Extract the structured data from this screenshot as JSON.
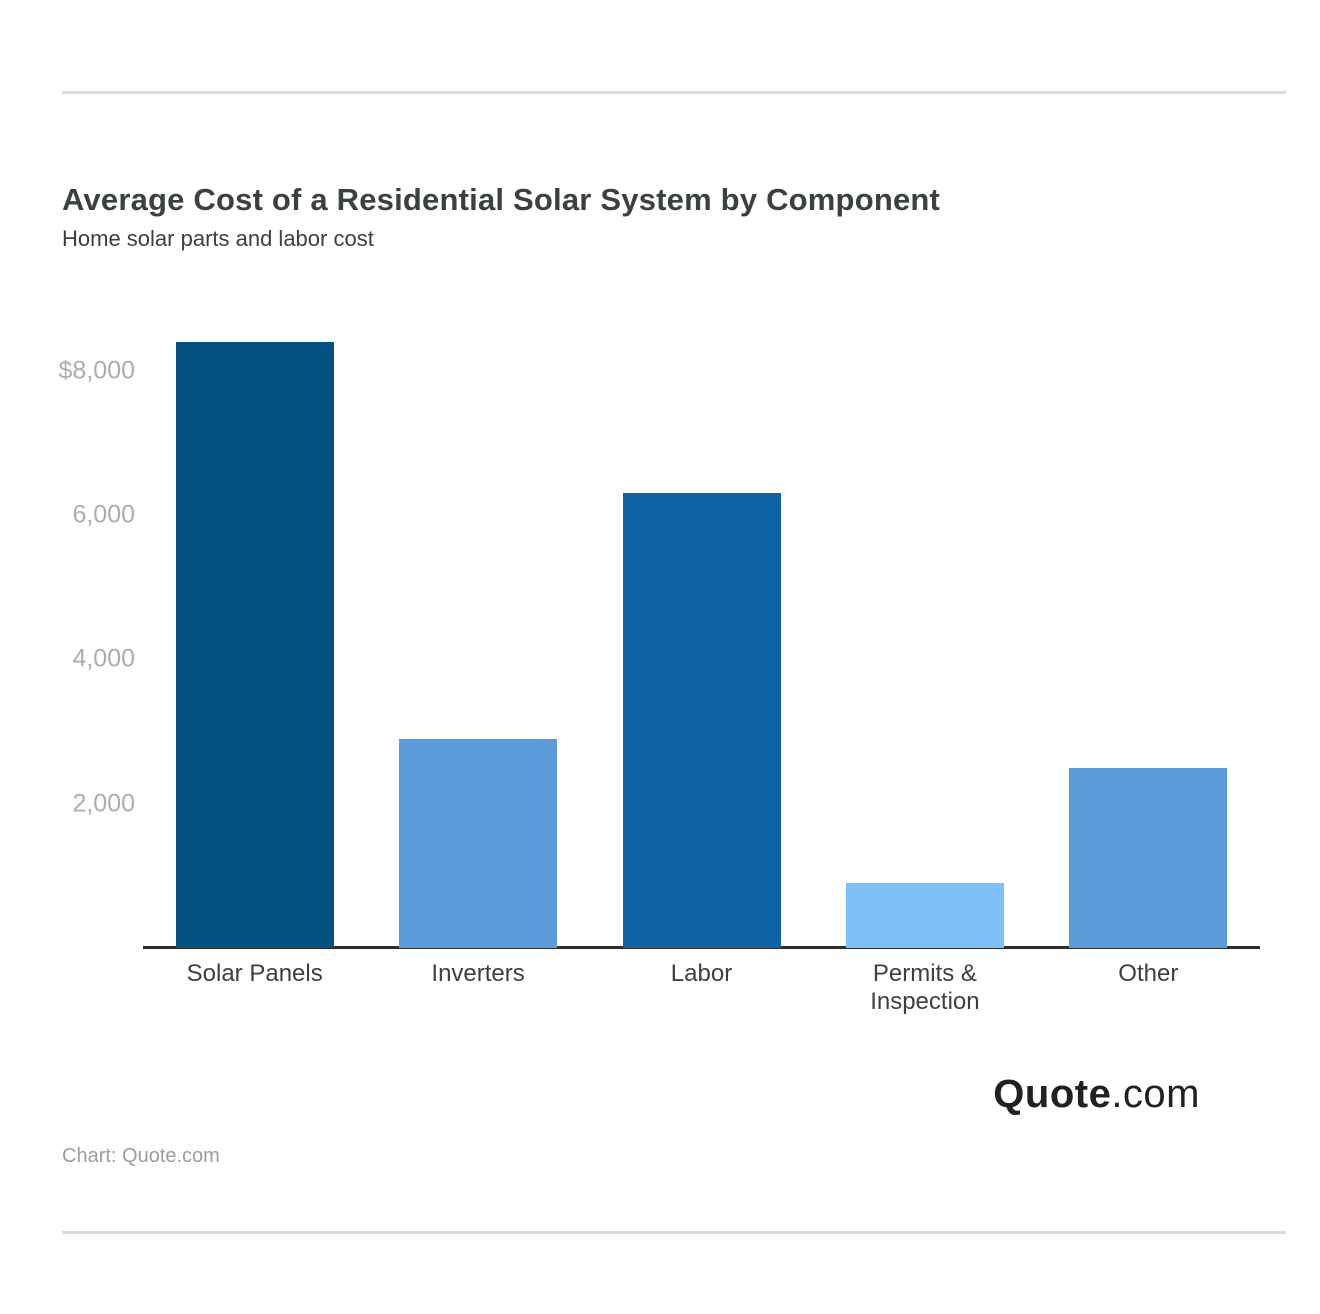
{
  "header": {
    "title": "Average Cost of a Residential Solar System by Component",
    "subtitle": "Home solar parts and labor cost"
  },
  "chart_data": {
    "type": "bar",
    "title": "Average Cost of a Residential Solar System by Component",
    "subtitle": "Home solar parts and labor cost",
    "categories": [
      "Solar Panels",
      "Inverters",
      "Labor",
      "Permits &\nInspection",
      "Other"
    ],
    "values": [
      8400,
      2900,
      6300,
      900,
      2500
    ],
    "unit": "USD",
    "bar_colors": [
      "#05517f",
      "#5b9cd9",
      "#0f63a5",
      "#80c0fa",
      "#5b9cd9"
    ],
    "yticks": [
      {
        "value": 8000,
        "label": "$8,000"
      },
      {
        "value": 6000,
        "label": "6,000"
      },
      {
        "value": 4000,
        "label": "4,000"
      },
      {
        "value": 2000,
        "label": "2,000"
      }
    ],
    "ylim": [
      0,
      8800
    ],
    "xlabel": "",
    "ylabel": "",
    "grid": false,
    "legend": false
  },
  "footer": {
    "logo": {
      "bold": "Quote",
      "light": ".com"
    },
    "credit": "Chart: Quote.com"
  },
  "colors": {
    "background": "#ffffff",
    "divider": "#dcdcdc",
    "axis_line": "#2d2d2d",
    "title_text": "#3b4043",
    "tick_text": "#abadaf",
    "category_text": "#3c4043",
    "credit_text": "#9a9da0",
    "logo_text": "#232021"
  }
}
